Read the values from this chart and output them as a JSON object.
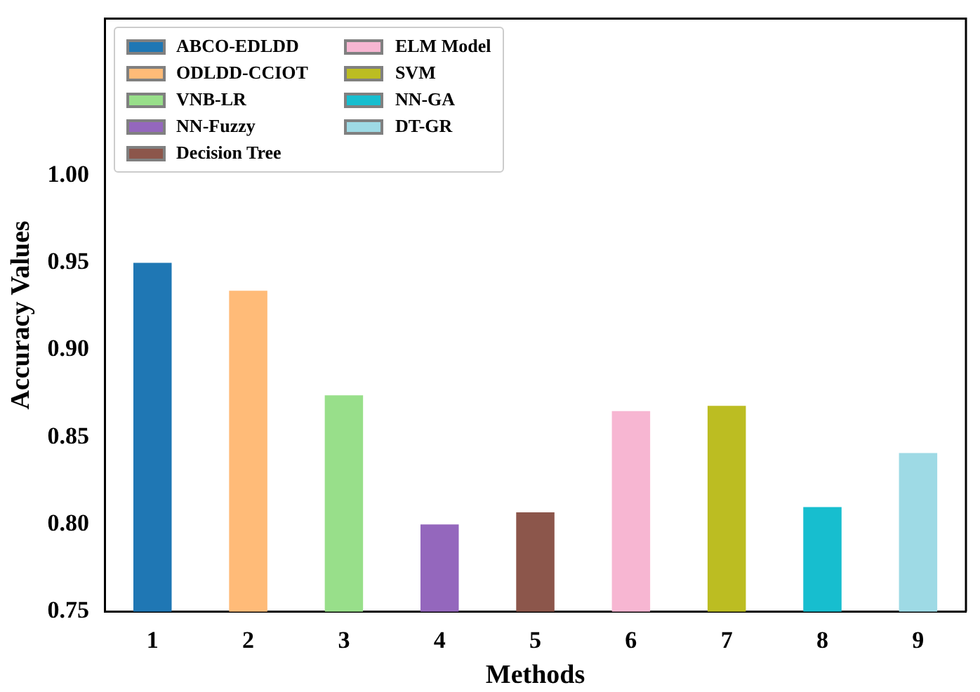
{
  "chart_data": {
    "type": "bar",
    "xlabel": "Methods",
    "ylabel": "Accuracy Values",
    "categories": [
      "1",
      "2",
      "3",
      "4",
      "5",
      "6",
      "7",
      "8",
      "9"
    ],
    "series": [
      {
        "name": "ABCO-EDLDD",
        "color": "#1f77b4",
        "values": [
          0.95,
          null,
          null,
          null,
          null,
          null,
          null,
          null,
          null
        ]
      },
      {
        "name": "ODLDD-CCIOT",
        "color": "#ffbb78",
        "values": [
          null,
          0.934,
          null,
          null,
          null,
          null,
          null,
          null,
          null
        ]
      },
      {
        "name": "VNB-LR",
        "color": "#98df8a",
        "values": [
          null,
          null,
          0.874,
          null,
          null,
          null,
          null,
          null,
          null
        ]
      },
      {
        "name": "NN-Fuzzy",
        "color": "#9467bd",
        "values": [
          null,
          null,
          null,
          0.8,
          null,
          null,
          null,
          null,
          null
        ]
      },
      {
        "name": "Decision Tree",
        "color": "#8c564b",
        "values": [
          null,
          null,
          null,
          null,
          0.807,
          null,
          null,
          null,
          null
        ]
      },
      {
        "name": "ELM Model",
        "color": "#f7b6d2",
        "values": [
          null,
          null,
          null,
          null,
          null,
          0.865,
          null,
          null,
          null
        ]
      },
      {
        "name": "SVM",
        "color": "#bcbd22",
        "values": [
          null,
          null,
          null,
          null,
          null,
          null,
          0.868,
          null,
          null
        ]
      },
      {
        "name": "NN-GA",
        "color": "#17becf",
        "values": [
          null,
          null,
          null,
          null,
          null,
          null,
          null,
          0.81,
          null
        ]
      },
      {
        "name": "DT-GR",
        "color": "#9edae5",
        "values": [
          null,
          null,
          null,
          null,
          null,
          null,
          null,
          null,
          0.841
        ]
      }
    ],
    "ylim": [
      0.75,
      1.09
    ],
    "yticks": [
      {
        "value": 0.75,
        "label": "0.75"
      },
      {
        "value": 0.8,
        "label": "0.80"
      },
      {
        "value": 0.85,
        "label": "0.85"
      },
      {
        "value": 0.9,
        "label": "0.90"
      },
      {
        "value": 0.95,
        "label": "0.95"
      },
      {
        "value": 1.0,
        "label": "1.00"
      }
    ],
    "grid": false,
    "legend": "top left"
  }
}
